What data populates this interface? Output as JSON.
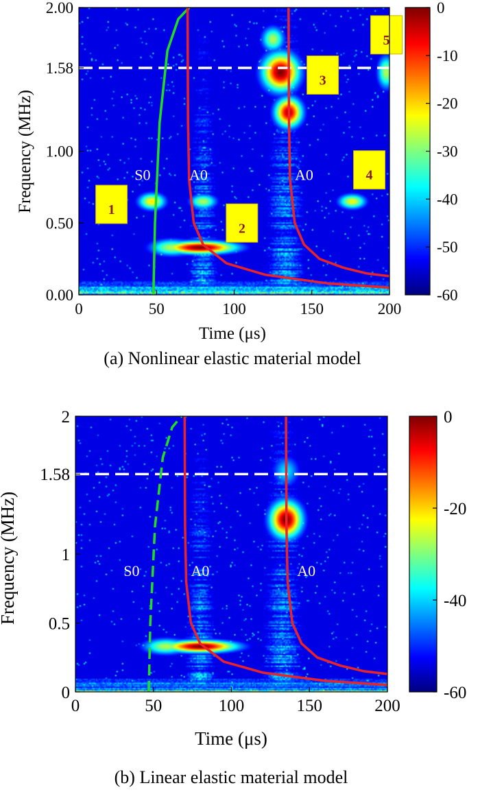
{
  "chart_data": [
    {
      "type": "heatmap",
      "panel": "a",
      "caption": "(a) Nonlinear elastic material model",
      "xlabel": "Time (μs)",
      "ylabel": "Frequency (MHz)",
      "xlim": [
        0,
        200
      ],
      "ylim": [
        0,
        2
      ],
      "xticks": [
        {
          "v": 0,
          "label": "0"
        },
        {
          "v": 50,
          "label": "50"
        },
        {
          "v": 100,
          "label": "100"
        },
        {
          "v": 150,
          "label": "150"
        },
        {
          "v": 200,
          "label": "200"
        }
      ],
      "yticks": [
        {
          "v": 0,
          "label": "0.00"
        },
        {
          "v": 0.5,
          "label": "0.50"
        },
        {
          "v": 1.0,
          "label": "1.00"
        },
        {
          "v": 1.58,
          "label": "1.58"
        },
        {
          "v": 2.0,
          "label": "2.00"
        }
      ],
      "colorbar": {
        "min": -60,
        "max": 0,
        "ticks": [
          {
            "v": 0,
            "label": "0"
          },
          {
            "v": -10,
            "label": "-10"
          },
          {
            "v": -20,
            "label": "-20"
          },
          {
            "v": -30,
            "label": "-30"
          },
          {
            "v": -40,
            "label": "-40"
          },
          {
            "v": -50,
            "label": "-50"
          },
          {
            "v": -60,
            "label": "-60"
          }
        ]
      },
      "hline": {
        "y": 1.58,
        "style": "dashed",
        "color": "#ffffff"
      },
      "hotspots": [
        {
          "t": 78,
          "f": 0.33,
          "st": 16,
          "sf": 0.03,
          "a": 1.0
        },
        {
          "t": 60,
          "f": 0.33,
          "st": 10,
          "sf": 0.04,
          "a": 0.55
        },
        {
          "t": 47,
          "f": 0.65,
          "st": 6,
          "sf": 0.04,
          "a": 0.65
        },
        {
          "t": 80,
          "f": 0.65,
          "st": 6,
          "sf": 0.035,
          "a": 0.55
        },
        {
          "t": 130,
          "f": 1.55,
          "st": 8,
          "sf": 0.09,
          "a": 1.0
        },
        {
          "t": 135,
          "f": 1.27,
          "st": 6,
          "sf": 0.07,
          "a": 0.95
        },
        {
          "t": 125,
          "f": 1.78,
          "st": 5,
          "sf": 0.06,
          "a": 0.55
        },
        {
          "t": 176,
          "f": 0.65,
          "st": 6,
          "sf": 0.035,
          "a": 0.62
        },
        {
          "t": 198,
          "f": 1.55,
          "st": 4,
          "sf": 0.08,
          "a": 0.55
        }
      ],
      "curves": [
        {
          "name": "S0",
          "color": "#22dd22",
          "style": "solid",
          "points": [
            [
              48,
              0
            ],
            [
              49,
              0.5
            ],
            [
              52,
              1.2
            ],
            [
              57,
              1.7
            ],
            [
              64,
              1.92
            ],
            [
              71,
              2.0
            ]
          ]
        },
        {
          "name": "A0",
          "color": "#e8242a",
          "style": "solid",
          "points": [
            [
              70,
              2.0
            ],
            [
              70.3,
              1.2
            ],
            [
              71,
              0.8
            ],
            [
              74,
              0.5
            ],
            [
              80,
              0.35
            ],
            [
              95,
              0.22
            ],
            [
              120,
              0.14
            ],
            [
              160,
              0.08
            ],
            [
              200,
              0.05
            ]
          ]
        },
        {
          "name": "A0",
          "color": "#e8242a",
          "style": "solid",
          "points": [
            [
              135,
              2.0
            ],
            [
              135.3,
              1.2
            ],
            [
              136,
              0.8
            ],
            [
              139,
              0.5
            ],
            [
              145,
              0.35
            ],
            [
              155,
              0.25
            ],
            [
              170,
              0.19
            ],
            [
              185,
              0.15
            ],
            [
              200,
              0.13
            ]
          ]
        }
      ],
      "mode_labels": [
        {
          "text": "S0",
          "t": 41,
          "f": 0.8
        },
        {
          "text": "A0",
          "t": 77,
          "f": 0.8
        },
        {
          "text": "A0",
          "t": 145,
          "f": 0.8
        }
      ],
      "markers": [
        {
          "label": "1",
          "t": 21,
          "f": 0.63
        },
        {
          "label": "2",
          "t": 105,
          "f": 0.5
        },
        {
          "label": "3",
          "t": 157,
          "f": 1.53
        },
        {
          "label": "4",
          "t": 187,
          "f": 0.87
        },
        {
          "label": "5",
          "t": 198,
          "f": 1.81
        }
      ]
    },
    {
      "type": "heatmap",
      "panel": "b",
      "caption": "(b) Linear elastic material model",
      "xlabel": "Time (μs)",
      "ylabel": "Frequency (MHz)",
      "xlim": [
        0,
        200
      ],
      "ylim": [
        0,
        2
      ],
      "xticks": [
        {
          "v": 0,
          "label": "0"
        },
        {
          "v": 50,
          "label": "50"
        },
        {
          "v": 100,
          "label": "100"
        },
        {
          "v": 150,
          "label": "150"
        },
        {
          "v": 200,
          "label": "200"
        }
      ],
      "yticks": [
        {
          "v": 0,
          "label": "0"
        },
        {
          "v": 0.5,
          "label": "0.5"
        },
        {
          "v": 1,
          "label": "1"
        },
        {
          "v": 1.58,
          "label": "1.58"
        },
        {
          "v": 2,
          "label": "2"
        }
      ],
      "colorbar": {
        "min": -60,
        "max": 0,
        "ticks": [
          {
            "v": 0,
            "label": "0"
          },
          {
            "v": -20,
            "label": "-20"
          },
          {
            "v": -40,
            "label": "-40"
          },
          {
            "v": -60,
            "label": "-60"
          }
        ]
      },
      "hline": {
        "y": 1.58,
        "style": "dashed",
        "color": "#ffffff"
      },
      "hotspots": [
        {
          "t": 80,
          "f": 0.33,
          "st": 16,
          "sf": 0.03,
          "a": 1.0
        },
        {
          "t": 58,
          "f": 0.33,
          "st": 10,
          "sf": 0.04,
          "a": 0.55
        },
        {
          "t": 135,
          "f": 1.25,
          "st": 7,
          "sf": 0.09,
          "a": 1.0
        },
        {
          "t": 135,
          "f": 1.6,
          "st": 6,
          "sf": 0.08,
          "a": 0.35
        }
      ],
      "curves": [
        {
          "name": "S0",
          "color": "#22dd22",
          "style": "dashed",
          "points": [
            [
              47,
              0
            ],
            [
              48,
              0.5
            ],
            [
              51,
              1.2
            ],
            [
              56,
              1.7
            ],
            [
              62,
              1.92
            ],
            [
              68,
              2.0
            ]
          ]
        },
        {
          "name": "A0",
          "color": "#e8242a",
          "style": "solid",
          "points": [
            [
              70,
              2.0
            ],
            [
              70.3,
              1.2
            ],
            [
              71,
              0.8
            ],
            [
              74,
              0.5
            ],
            [
              80,
              0.35
            ],
            [
              95,
              0.22
            ],
            [
              120,
              0.14
            ],
            [
              160,
              0.08
            ],
            [
              200,
              0.05
            ]
          ]
        },
        {
          "name": "A0",
          "color": "#e8242a",
          "style": "solid",
          "points": [
            [
              135,
              2.0
            ],
            [
              135.3,
              1.2
            ],
            [
              136,
              0.8
            ],
            [
              139,
              0.5
            ],
            [
              145,
              0.35
            ],
            [
              155,
              0.25
            ],
            [
              170,
              0.19
            ],
            [
              185,
              0.15
            ],
            [
              200,
              0.13
            ]
          ]
        }
      ],
      "mode_labels": [
        {
          "text": "S0",
          "t": 36,
          "f": 0.84
        },
        {
          "text": "A0",
          "t": 80,
          "f": 0.84
        },
        {
          "text": "A0",
          "t": 148,
          "f": 0.84
        }
      ],
      "markers": []
    }
  ]
}
